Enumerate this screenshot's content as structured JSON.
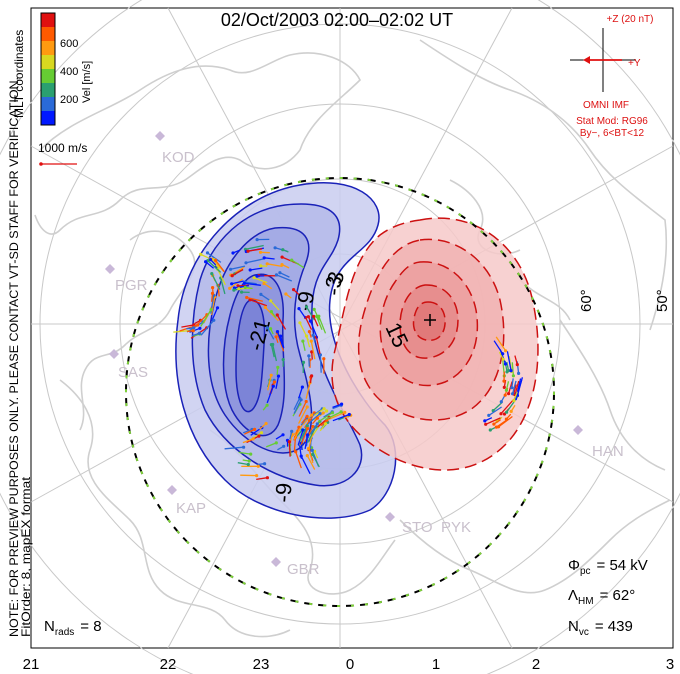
{
  "title": "02/Oct/2003 02:00–02:02 UT",
  "velocity_scale": {
    "label": "Vel [m/s]",
    "ticks": [
      "600",
      "400",
      "200"
    ],
    "colors": [
      "#0018ff",
      "#2a6ad8",
      "#2aa070",
      "#66cc33",
      "#d8d820",
      "#ff9a10",
      "#ff5a00",
      "#e01010"
    ]
  },
  "coord_label": "MLT coordinates",
  "note": "NOTE: FOR PREVIEW PURPOSES ONLY. PLEASE CONTACT VT-SD STAFF FOR VERIFICATION.",
  "fit_order": "FitOrder: 8, mapEX format",
  "reference_vector": "1000 m/s",
  "imf": {
    "z_label": "+Z (20 nT)",
    "y_label": "+Y",
    "source": "OMNI IMF",
    "model": "Stat Mod: RG96",
    "model_condition": "By−, 6<BT<12"
  },
  "stations": [
    "KOD",
    "PGR",
    "SAS",
    "KAP",
    "GBR",
    "STO",
    "PYK",
    "HAN"
  ],
  "latitude_labels": [
    "60°",
    "50°"
  ],
  "contour_labels_negative": [
    "-21",
    "-9",
    "-3",
    "-9"
  ],
  "contour_labels_positive": [
    "3",
    "15"
  ],
  "mlt_labels": [
    "21",
    "22",
    "23",
    "0",
    "1",
    "2",
    "3"
  ],
  "stats": {
    "phi_symbol": "Φ",
    "phi_sub": "pc",
    "phi_value": "= 54 kV",
    "lambda_symbol": "Λ",
    "lambda_sub": "HM",
    "lambda_value": "= 62°",
    "nvc_symbol": "N",
    "nvc_sub": "vc",
    "nvc_value": "= 439",
    "nrads_symbol": "N",
    "nrads_sub": "rads",
    "nrads_value": "= 8"
  },
  "colors": {
    "negative_fill": "#c9cdf0",
    "positive_fill": "#f6c9c9",
    "negative_line": "#1a22b8",
    "positive_line": "#cc1111",
    "grid": "#c8c8c8",
    "coast": "#cfcfcf",
    "station": "#c9b8d8"
  }
}
